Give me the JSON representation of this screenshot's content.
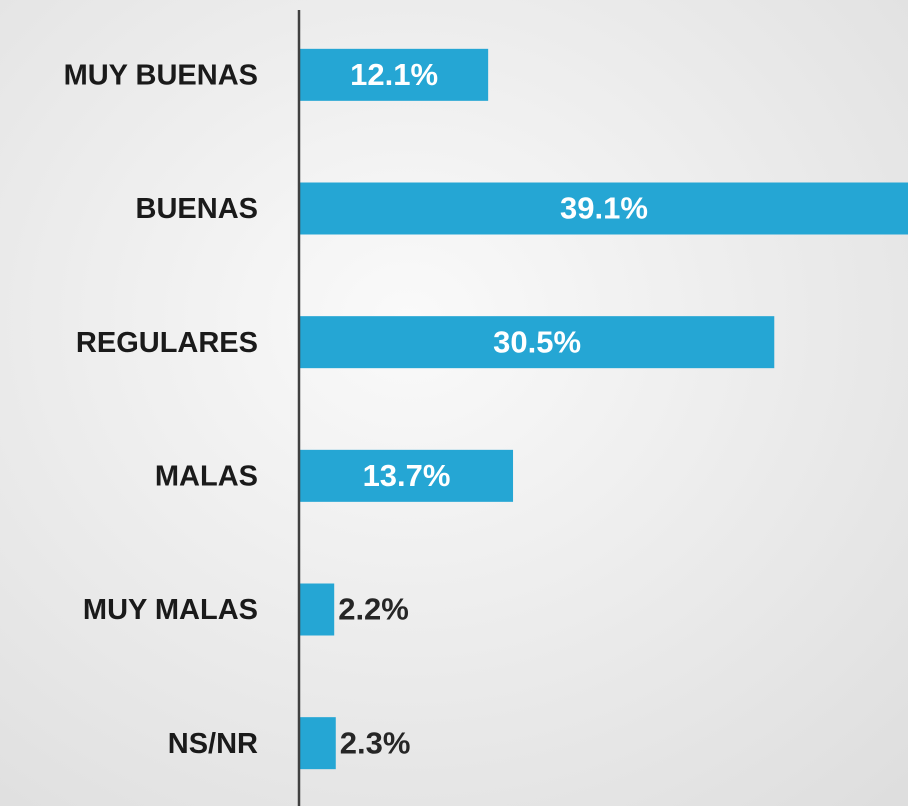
{
  "chart_data": {
    "type": "hbar",
    "categories": [
      "MUY BUENAS",
      "BUENAS",
      "REGULARES",
      "MALAS",
      "MUY MALAS",
      "NS/NR"
    ],
    "values": [
      12.1,
      39.1,
      30.5,
      13.7,
      2.2,
      2.3
    ],
    "value_labels": [
      "12.1%",
      "39.1%",
      "30.5%",
      "13.7%",
      "2.2%",
      "2.3%"
    ],
    "color": "#25a6d4"
  }
}
